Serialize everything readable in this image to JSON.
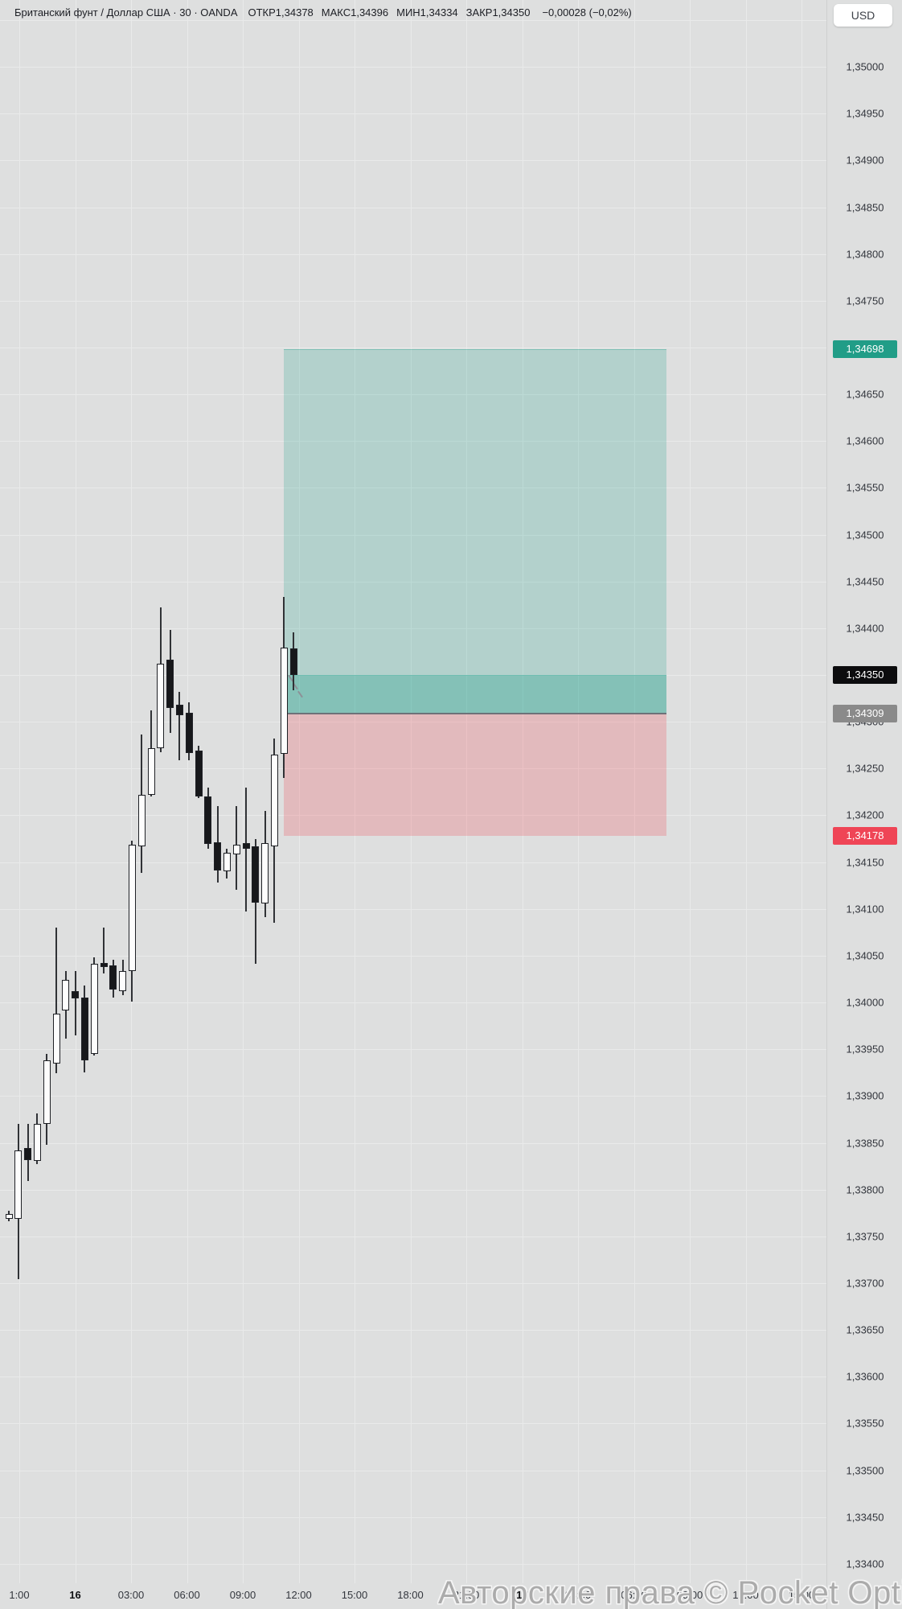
{
  "header": {
    "title": "Британский фунт / Доллар США · 30 · OANDA",
    "ohlc": [
      {
        "k": "ОТКР",
        "v": "1,34378"
      },
      {
        "k": "МАКС",
        "v": "1,34396"
      },
      {
        "k": "МИН",
        "v": "1,34334"
      },
      {
        "k": "ЗАКР",
        "v": "1,34350"
      }
    ],
    "change": "−0,00028 (−0,02%)"
  },
  "currency_button": "USD",
  "watermark": "Авторские права © Pocket Option",
  "colors": {
    "background": "#dedfdf",
    "grid": "#e9eaea",
    "candle_up_fill": "#fdfdfd",
    "candle_down_fill": "#17181b",
    "candle_border": "#1f2126",
    "profit_zone": "rgba(8,153,129,0.20)",
    "profit_filled_zone": "rgba(8,153,129,0.42)",
    "loss_zone": "rgba(242,54,69,0.22)",
    "entry_line": "#6e7178",
    "target_label_bg": "#219d87",
    "current_label_bg": "#0c0c0e",
    "entry_label_bg": "#8a8a8a",
    "stop_label_bg": "#ef4556"
  },
  "chart_data": {
    "type": "candlestick",
    "symbol": "Британский фунт / Доллар США",
    "interval": "30",
    "exchange": "OANDA",
    "ohlc_header": {
      "open": "1,34378",
      "high": "1,34396",
      "low": "1,34334",
      "close": "1,34350",
      "change": "−0,00028 (−0,02%)"
    },
    "price_axis": {
      "min": 1.334,
      "max": 1.35,
      "step": 0.0005,
      "decimal_separator": ","
    },
    "time_axis": {
      "labels": [
        {
          "t": "1:00",
          "bold": false
        },
        {
          "t": "16",
          "bold": true
        },
        {
          "t": "03:00",
          "bold": false
        },
        {
          "t": "06:00",
          "bold": false
        },
        {
          "t": "09:00",
          "bold": false
        },
        {
          "t": "12:00",
          "bold": false
        },
        {
          "t": "15:00",
          "bold": false
        },
        {
          "t": "18:00",
          "bold": false
        },
        {
          "t": "21:00",
          "bold": false
        },
        {
          "t": "17",
          "bold": true
        },
        {
          "t": "03:00",
          "bold": false
        },
        {
          "t": "06:00",
          "bold": false
        },
        {
          "t": "09:00",
          "bold": false
        },
        {
          "t": "12:00",
          "bold": false
        },
        {
          "t": "15:00",
          "bold": false
        }
      ]
    },
    "candles": [
      [
        1.33769,
        1.33777,
        1.33766,
        1.33774
      ],
      [
        1.33769,
        1.3387,
        1.33704,
        1.33842
      ],
      [
        1.33844,
        1.3387,
        1.33809,
        1.33831
      ],
      [
        1.33831,
        1.33881,
        1.33827,
        1.3387
      ],
      [
        1.3387,
        1.33945,
        1.33848,
        1.33938
      ],
      [
        1.33935,
        1.3408,
        1.33924,
        1.33988
      ],
      [
        1.33991,
        1.34034,
        1.33961,
        1.34024
      ],
      [
        1.34012,
        1.34034,
        1.33965,
        1.34004
      ],
      [
        1.34005,
        1.34018,
        1.33925,
        1.33938
      ],
      [
        1.33945,
        1.34048,
        1.33943,
        1.34041
      ],
      [
        1.34042,
        1.3408,
        1.34031,
        1.34038
      ],
      [
        1.3404,
        1.34046,
        1.34005,
        1.34014
      ],
      [
        1.34012,
        1.34046,
        1.34008,
        1.34034
      ],
      [
        1.34034,
        1.34173,
        1.34001,
        1.34169
      ],
      [
        1.34167,
        1.34286,
        1.34138,
        1.34222
      ],
      [
        1.34222,
        1.34312,
        1.3422,
        1.34272
      ],
      [
        1.34272,
        1.34422,
        1.34267,
        1.34362
      ],
      [
        1.34366,
        1.34398,
        1.34288,
        1.34315
      ],
      [
        1.34318,
        1.34332,
        1.34259,
        1.34307
      ],
      [
        1.3431,
        1.34321,
        1.34259,
        1.34267
      ],
      [
        1.34269,
        1.34274,
        1.34218,
        1.3422
      ],
      [
        1.3422,
        1.3423,
        1.34164,
        1.34169
      ],
      [
        1.34171,
        1.3421,
        1.34128,
        1.34141
      ],
      [
        1.3414,
        1.34164,
        1.34132,
        1.3416
      ],
      [
        1.34158,
        1.3421,
        1.3412,
        1.34169
      ],
      [
        1.3417,
        1.3423,
        1.34097,
        1.34164
      ],
      [
        1.34167,
        1.34175,
        1.34041,
        1.34107
      ],
      [
        1.34106,
        1.34205,
        1.34091,
        1.3417
      ],
      [
        1.34167,
        1.34282,
        1.34085,
        1.34265
      ],
      [
        1.34266,
        1.34433,
        1.3424,
        1.34379
      ],
      [
        1.34378,
        1.34396,
        1.34334,
        1.3435
      ]
    ],
    "position_tool": {
      "kind": "long-position",
      "target": 1.34698,
      "current": 1.3435,
      "entry": 1.34309,
      "stop": 1.34178,
      "labels": {
        "target": "1,34698",
        "current": "1,34350",
        "entry": "1,34309",
        "stop": "1,34178"
      }
    }
  }
}
